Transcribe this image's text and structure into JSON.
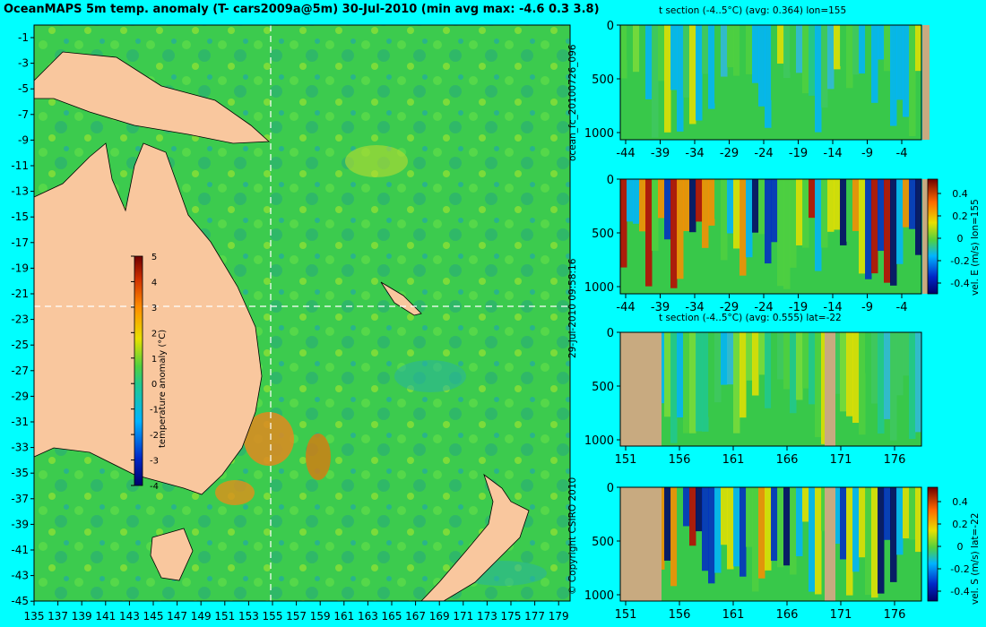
{
  "title": "OceanMAPS 5m temp. anomaly (T- cars2009a@5m) 30-Jul-2010 (min avg max: -4.6 0.3 3.8)",
  "map": {
    "lat_ticks": [
      "-1",
      "-3",
      "-5",
      "-7",
      "-9",
      "-11",
      "-13",
      "-15",
      "-17",
      "-19",
      "-21",
      "-23",
      "-25",
      "-27",
      "-29",
      "-31",
      "-33",
      "-35",
      "-37",
      "-39",
      "-41",
      "-43",
      "-45"
    ],
    "lon_ticks": [
      "135",
      "137",
      "139",
      "141",
      "143",
      "145",
      "147",
      "149",
      "151",
      "153",
      "155",
      "157",
      "159",
      "161",
      "163",
      "165",
      "167",
      "169",
      "171",
      "173",
      "175",
      "177",
      "179"
    ],
    "colorbar_label": "temperature anomaly (°C)",
    "colorbar_ticks": [
      "5",
      "4",
      "3",
      "2",
      "1",
      "0",
      "-1",
      "-2",
      "-3",
      "-4"
    ],
    "crosshair_lon": 155,
    "crosshair_lat": -22
  },
  "vertical_labels": {
    "run_id": "ocean_fc_20100726_096",
    "date": "29-Jul-2010 09:58:16",
    "copyright": "© Copyright CSIRO 2010"
  },
  "panels": [
    {
      "title": "t section (-4..5°C) (avg: 0.364) lon=155",
      "depth_ticks": [
        "0",
        "500",
        "1000"
      ],
      "x_ticks": [
        "-44",
        "-39",
        "-34",
        "-29",
        "-24",
        "-19",
        "-14",
        "-9",
        "-4"
      ]
    },
    {
      "title": "",
      "depth_ticks": [
        "0",
        "500",
        "1000"
      ],
      "x_ticks": [
        "-44",
        "-39",
        "-34",
        "-29",
        "-24",
        "-19",
        "-14",
        "-9",
        "-4"
      ],
      "colorbar_label": "vel. E (m/s) lon=155",
      "colorbar_ticks": [
        "0.4",
        "0.2",
        "0",
        "-0.2",
        "-0.4"
      ]
    },
    {
      "title": "t section (-4..5°C) (avg: 0.555) lat=-22",
      "depth_ticks": [
        "0",
        "500",
        "1000"
      ],
      "x_ticks": [
        "151",
        "156",
        "161",
        "166",
        "171",
        "176"
      ]
    },
    {
      "title": "",
      "depth_ticks": [
        "0",
        "500",
        "1000"
      ],
      "x_ticks": [
        "151",
        "156",
        "161",
        "166",
        "171",
        "176"
      ],
      "colorbar_label": "vel. S (m/s) lat=-22",
      "colorbar_ticks": [
        "0.4",
        "0.2",
        "0",
        "-0.2",
        "-0.4"
      ]
    }
  ],
  "colors": {
    "background": "#00ffff",
    "land": "#f9c79e",
    "section_land": "#c8aa80",
    "ocean_base": "#38c84a"
  },
  "chart_data": [
    {
      "type": "heatmap",
      "title": "OceanMAPS 5m temp. anomaly (T- cars2009a@5m) 30-Jul-2010 (min avg max: -4.6 0.3 3.8)",
      "xlabel": "",
      "ylabel": "",
      "xlim": [
        135,
        180
      ],
      "ylim": [
        -45,
        0
      ],
      "zlim": [
        -4,
        5
      ],
      "zlabel": "temperature anomaly (°C)",
      "stats": {
        "min": -4.6,
        "avg": 0.3,
        "max": 3.8
      }
    },
    {
      "type": "heatmap",
      "title": "t section (-4..5°C) (avg: 0.364) lon=155",
      "xlim": [
        -46,
        0
      ],
      "ylim": [
        1050,
        0
      ],
      "zlim": [
        -4,
        5
      ],
      "avg": 0.364
    },
    {
      "type": "heatmap",
      "title": "",
      "xlim": [
        -46,
        0
      ],
      "ylim": [
        1050,
        0
      ],
      "zlim": [
        -0.4,
        0.5
      ],
      "zlabel": "vel. E (m/s) lon=155"
    },
    {
      "type": "heatmap",
      "title": "t section (-4..5°C) (avg: 0.555) lat=-22",
      "xlim": [
        150,
        180
      ],
      "ylim": [
        1050,
        0
      ],
      "zlim": [
        -4,
        5
      ],
      "avg": 0.555
    },
    {
      "type": "heatmap",
      "title": "",
      "xlim": [
        150,
        180
      ],
      "ylim": [
        1050,
        0
      ],
      "zlim": [
        -0.4,
        0.5
      ],
      "zlabel": "vel. S (m/s) lat=-22"
    }
  ]
}
